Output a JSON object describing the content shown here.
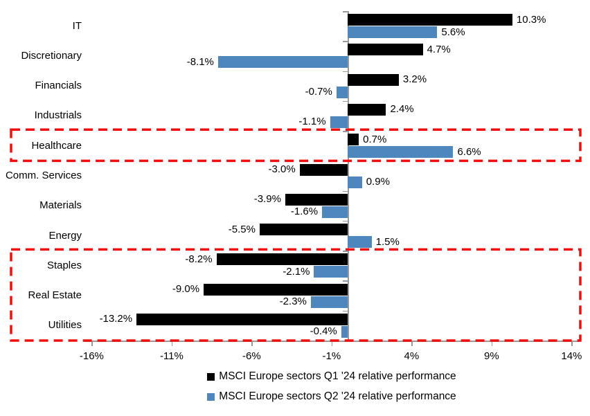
{
  "chart_data": {
    "type": "bar",
    "orientation": "horizontal",
    "title": "",
    "categories": [
      "IT",
      "Discretionary",
      "Financials",
      "Industrials",
      "Healthcare",
      "Comm. Services",
      "Materials",
      "Energy",
      "Staples",
      "Real Estate",
      "Utilities"
    ],
    "series": [
      {
        "name": "MSCI Europe sectors Q1 '24 relative performance",
        "color": "#000000",
        "values": [
          10.3,
          4.7,
          3.2,
          2.4,
          0.7,
          -3.0,
          -3.9,
          -5.5,
          -8.2,
          -9.0,
          -13.2
        ]
      },
      {
        "name": "MSCI Europe sectors Q2 '24 relative performance",
        "color": "#4E86BE",
        "values": [
          5.6,
          -8.1,
          -0.7,
          -1.1,
          6.6,
          0.9,
          -1.6,
          1.5,
          -2.1,
          -2.3,
          -0.4
        ]
      }
    ],
    "value_label_suffix": "%",
    "value_label_decimals": 1,
    "x_axis": {
      "min": -16.5,
      "max": 14.5,
      "ticks": [
        -16,
        -11,
        -6,
        -1,
        4,
        9,
        14
      ],
      "tick_labels": [
        "-16%",
        "-11%",
        "-6%",
        "-1%",
        "4%",
        "9%",
        "14%"
      ]
    },
    "grid": false,
    "legend_position": "bottom",
    "colors": {
      "axis": "#999999",
      "text": "#000000",
      "highlight": "#F50D0D"
    },
    "highlights": [
      {
        "categories": [
          "Healthcare"
        ]
      },
      {
        "categories": [
          "Staples",
          "Real Estate",
          "Utilities"
        ]
      }
    ]
  }
}
